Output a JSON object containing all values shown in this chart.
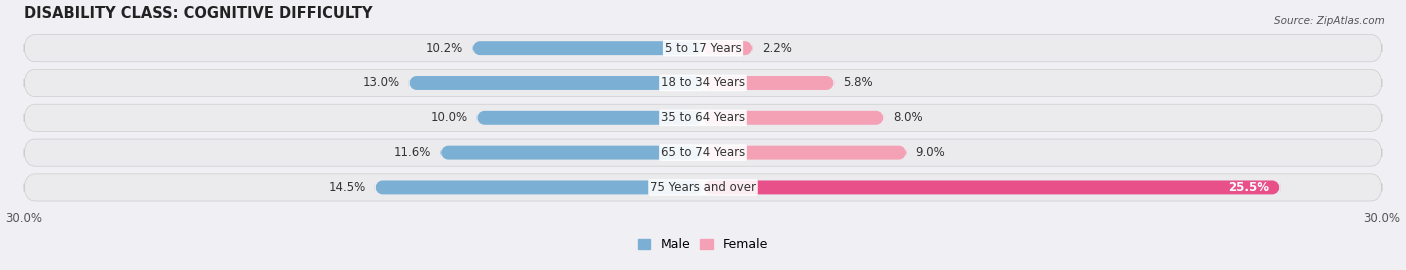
{
  "title": "DISABILITY CLASS: COGNITIVE DIFFICULTY",
  "source": "Source: ZipAtlas.com",
  "categories": [
    "5 to 17 Years",
    "18 to 34 Years",
    "35 to 64 Years",
    "65 to 74 Years",
    "75 Years and over"
  ],
  "male_values": [
    10.2,
    13.0,
    10.0,
    11.6,
    14.5
  ],
  "female_values": [
    2.2,
    5.8,
    8.0,
    9.0,
    25.5
  ],
  "x_max": 30.0,
  "x_min": -30.0,
  "male_bar_color": "#7bafd4",
  "female_bar_color": "#f4a0b5",
  "female_bar_color_large": "#e8508a",
  "male_label": "Male",
  "female_label": "Female",
  "row_bg_color": "#e8e8ec",
  "background_color": "#f0f0f4",
  "title_fontsize": 10.5,
  "label_fontsize": 8.5,
  "axis_label_fontsize": 8.5,
  "legend_fontsize": 9
}
